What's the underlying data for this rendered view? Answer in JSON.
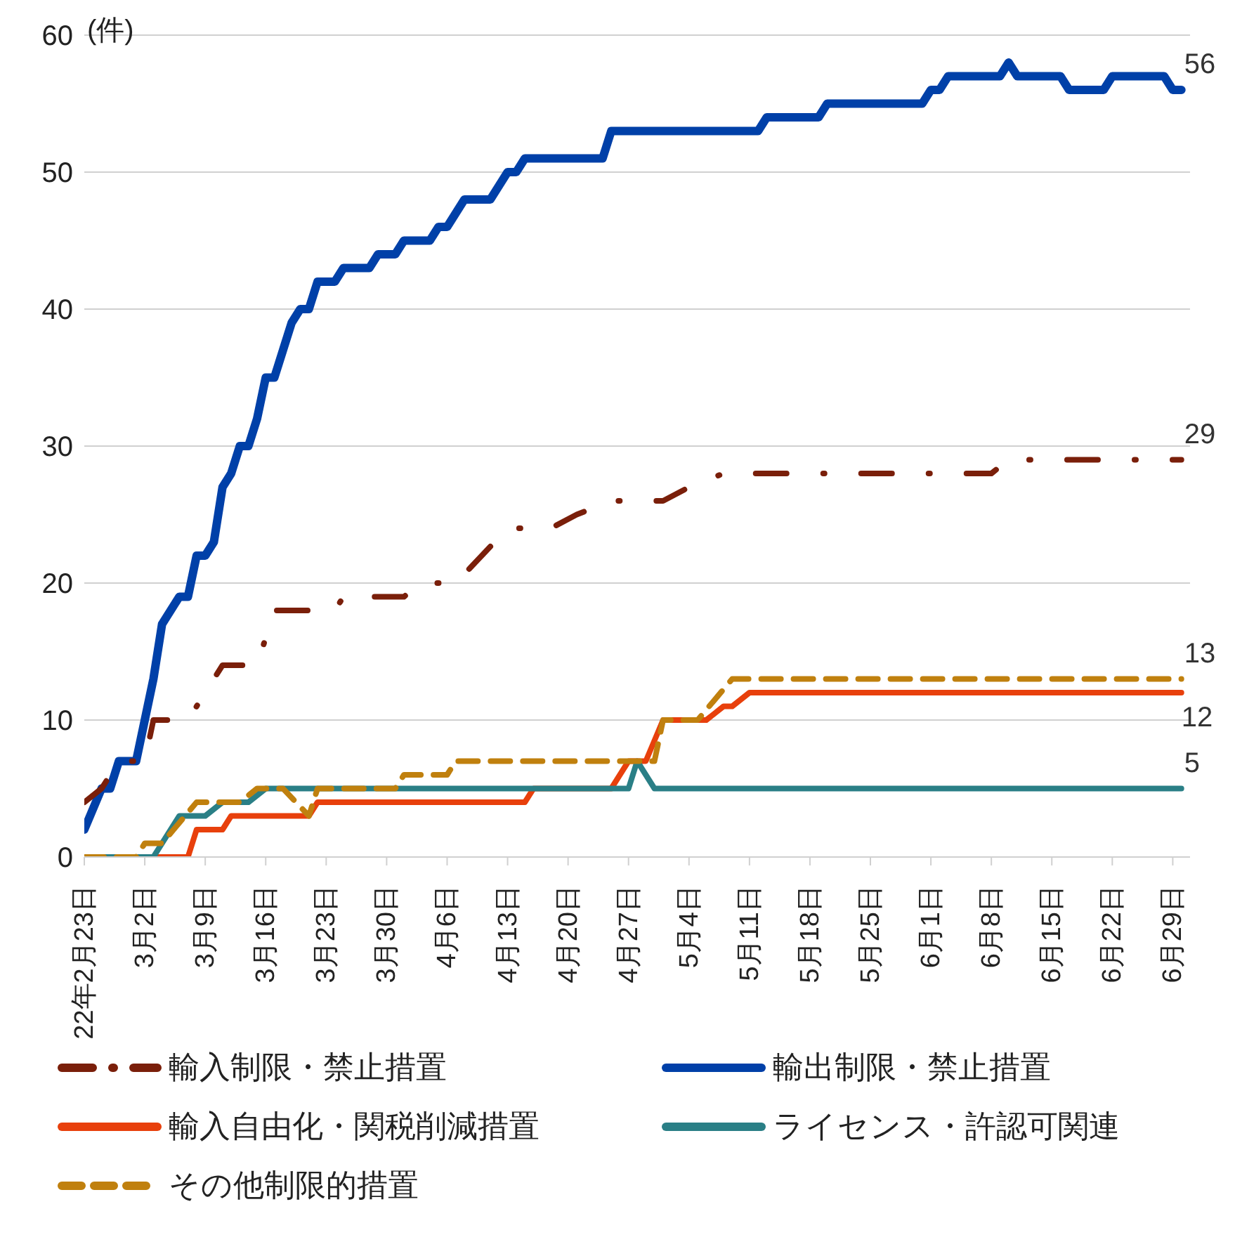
{
  "chart_data": {
    "type": "line",
    "ylabel": "(件)",
    "ylim": [
      0,
      60
    ],
    "yticks": [
      0,
      10,
      20,
      30,
      40,
      50,
      60
    ],
    "xlim": [
      "--02-23",
      "--07-01"
    ],
    "xticks": [
      {
        "value": "--02-23",
        "label": "22年2月23日"
      },
      {
        "value": "--03-02",
        "label": "3月2日"
      },
      {
        "value": "--03-09",
        "label": "3月9日"
      },
      {
        "value": "--03-16",
        "label": "3月16日"
      },
      {
        "value": "--03-23",
        "label": "3月23日"
      },
      {
        "value": "--03-30",
        "label": "3月30日"
      },
      {
        "value": "--04-06",
        "label": "4月6日"
      },
      {
        "value": "--04-13",
        "label": "4月13日"
      },
      {
        "value": "--04-20",
        "label": "4月20日"
      },
      {
        "value": "--04-27",
        "label": "4月27日"
      },
      {
        "value": "--05-04",
        "label": "5月4日"
      },
      {
        "value": "--05-11",
        "label": "5月11日"
      },
      {
        "value": "--05-18",
        "label": "5月18日"
      },
      {
        "value": "--05-25",
        "label": "5月25日"
      },
      {
        "value": "--06-01",
        "label": "6月1日"
      },
      {
        "value": "--06-08",
        "label": "6月8日"
      },
      {
        "value": "--06-15",
        "label": "6月15日"
      },
      {
        "value": "--06-22",
        "label": "6月22日"
      },
      {
        "value": "--06-29",
        "label": "6月29日"
      }
    ],
    "grid": "y",
    "legend": "bottom",
    "marker": "none",
    "series": [
      {
        "name": "輸入制限・禁止措置",
        "color": "#7a1f0a",
        "line_style": "dashdot",
        "x": [
          "--02-23",
          "--02-25",
          "--02-27",
          "--03-02",
          "--03-03",
          "--03-07",
          "--03-11",
          "--03-15",
          "--03-17",
          "--03-24",
          "--03-25",
          "--04-01",
          "--04-03",
          "--04-07",
          "--04-13",
          "--04-18",
          "--04-21",
          "--04-25",
          "--05-01",
          "--05-04",
          "--05-08",
          "--06-08",
          "--06-10",
          "--06-30"
        ],
        "values": [
          4,
          5,
          7,
          7,
          10,
          10,
          14,
          14,
          18,
          18,
          19,
          19,
          20,
          20,
          24,
          24,
          25,
          26,
          26,
          27,
          28,
          28,
          29,
          29
        ],
        "value_labels": [
          null,
          null,
          null,
          null,
          null,
          null,
          null,
          null,
          null,
          null,
          null,
          null,
          null,
          null,
          null,
          null,
          null,
          null,
          null,
          null,
          null,
          null,
          null,
          "29"
        ]
      },
      {
        "name": "輸出制限・禁止措置",
        "color": "#0040a8",
        "line_style": "solid",
        "x": [
          "--02-23",
          "--02-25",
          "--02-26",
          "--02-27",
          "--03-01",
          "--03-03",
          "--03-04",
          "--03-06",
          "--03-07",
          "--03-08",
          "--03-09",
          "--03-10",
          "--03-11",
          "--03-12",
          "--03-13",
          "--03-14",
          "--03-15",
          "--03-16",
          "--03-17",
          "--03-19",
          "--03-20",
          "--03-21",
          "--03-22",
          "--03-24",
          "--03-25",
          "--03-28",
          "--03-29",
          "--03-31",
          "--04-01",
          "--04-04",
          "--04-05",
          "--04-06",
          "--04-08",
          "--04-11",
          "--04-13",
          "--04-14",
          "--04-15",
          "--04-24",
          "--04-25",
          "--05-12",
          "--05-13",
          "--05-19",
          "--05-20",
          "--05-31",
          "--06-01",
          "--06-02",
          "--06-03",
          "--06-09",
          "--06-10",
          "--06-11",
          "--06-16",
          "--06-17",
          "--06-21",
          "--06-22",
          "--06-28",
          "--06-29",
          "--06-30"
        ],
        "values": [
          2,
          5,
          5,
          7,
          7,
          13,
          17,
          19,
          19,
          22,
          22,
          23,
          27,
          28,
          30,
          30,
          32,
          35,
          35,
          39,
          40,
          40,
          42,
          42,
          43,
          43,
          44,
          44,
          45,
          45,
          46,
          46,
          48,
          48,
          50,
          50,
          51,
          51,
          53,
          53,
          54,
          54,
          55,
          55,
          56,
          56,
          57,
          57,
          58,
          57,
          57,
          56,
          56,
          57,
          57,
          56,
          56
        ],
        "value_labels": [
          null,
          null,
          null,
          null,
          null,
          null,
          null,
          null,
          null,
          null,
          null,
          null,
          null,
          null,
          null,
          null,
          null,
          null,
          null,
          null,
          null,
          null,
          null,
          null,
          null,
          null,
          null,
          null,
          null,
          null,
          null,
          null,
          null,
          null,
          null,
          null,
          null,
          null,
          null,
          null,
          null,
          null,
          null,
          null,
          null,
          null,
          null,
          null,
          null,
          null,
          null,
          null,
          null,
          null,
          null,
          null,
          "56"
        ]
      },
      {
        "name": "輸入自由化・関税削減措置",
        "color": "#e8400c",
        "line_style": "solid",
        "x": [
          "--02-23",
          "--03-07",
          "--03-08",
          "--03-11",
          "--03-12",
          "--03-21",
          "--03-22",
          "--04-15",
          "--04-16",
          "--04-25",
          "--04-27",
          "--04-29",
          "--05-01",
          "--05-06",
          "--05-08",
          "--05-09",
          "--05-11",
          "--06-30"
        ],
        "values": [
          0,
          0,
          2,
          2,
          3,
          3,
          4,
          4,
          5,
          5,
          7,
          7,
          10,
          10,
          11,
          11,
          12,
          12
        ],
        "value_labels": [
          null,
          null,
          null,
          null,
          null,
          null,
          null,
          null,
          null,
          null,
          null,
          null,
          null,
          null,
          null,
          null,
          null,
          "12"
        ]
      },
      {
        "name": "ライセンス・許認可関連",
        "color": "#2a7f86",
        "line_style": "solid",
        "x": [
          "--02-23",
          "--03-03",
          "--03-06",
          "--03-09",
          "--03-11",
          "--03-14",
          "--03-16",
          "--04-27",
          "--04-28",
          "--04-30",
          "--06-30"
        ],
        "values": [
          0,
          0,
          3,
          3,
          4,
          4,
          5,
          5,
          7,
          5,
          5
        ],
        "value_labels": [
          null,
          null,
          null,
          null,
          null,
          null,
          null,
          null,
          null,
          null,
          "5"
        ]
      },
      {
        "name": "その他制限的措置",
        "color": "#c0800e",
        "line_style": "dashed",
        "x": [
          "--02-23",
          "--03-01",
          "--03-02",
          "--03-04",
          "--03-08",
          "--03-13",
          "--03-15",
          "--03-18",
          "--03-21",
          "--03-22",
          "--03-31",
          "--04-01",
          "--04-06",
          "--04-07",
          "--04-30",
          "--05-01",
          "--05-05",
          "--05-09",
          "--06-30"
        ],
        "values": [
          0,
          0,
          1,
          1,
          4,
          4,
          5,
          5,
          3,
          5,
          5,
          6,
          6,
          7,
          7,
          10,
          10,
          13,
          13
        ],
        "value_labels": [
          null,
          null,
          null,
          null,
          null,
          null,
          null,
          null,
          null,
          null,
          null,
          null,
          null,
          null,
          null,
          null,
          null,
          null,
          "13"
        ]
      }
    ]
  }
}
